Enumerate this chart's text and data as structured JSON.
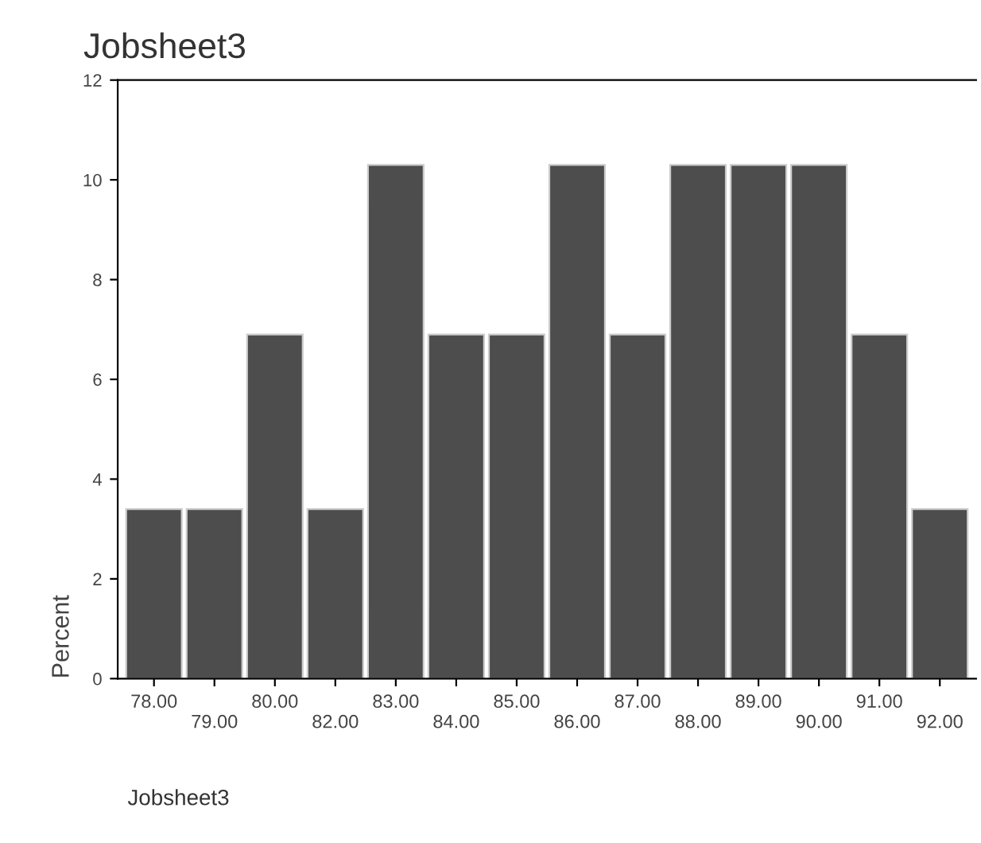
{
  "chart_data": {
    "type": "bar",
    "title": "Jobsheet3",
    "xlabel": "Jobsheet3",
    "ylabel": "Percent",
    "categories": [
      "78.00",
      "79.00",
      "80.00",
      "82.00",
      "83.00",
      "84.00",
      "85.00",
      "86.00",
      "87.00",
      "88.00",
      "89.00",
      "90.00",
      "91.00",
      "92.00"
    ],
    "values": [
      3.4,
      3.4,
      6.9,
      3.4,
      10.3,
      6.9,
      6.9,
      10.3,
      6.9,
      10.3,
      10.3,
      10.3,
      6.9,
      3.4
    ],
    "color": "#4d4d4d",
    "ylim": [
      0,
      12
    ],
    "yticks": [
      0,
      2,
      4,
      6,
      8,
      10,
      12
    ],
    "grid": false,
    "legend": false
  }
}
